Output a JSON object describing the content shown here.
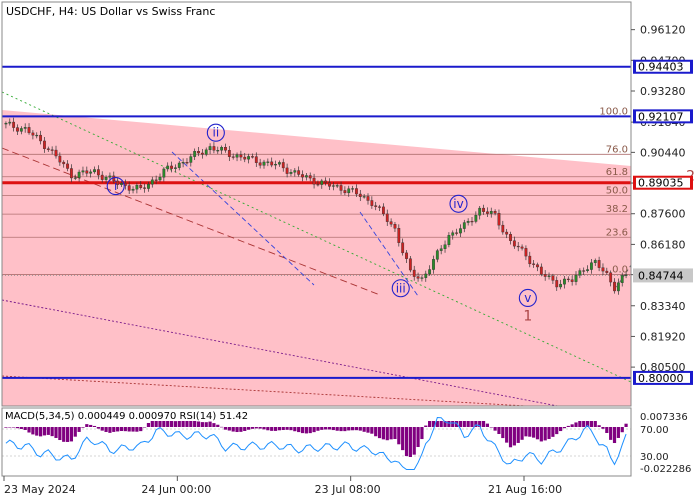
{
  "chart_data": {
    "type": "candlestick",
    "title": "USDCHF, H4:  US Dollar vs Swiss Franc",
    "y_range": [
      0.787,
      0.974
    ],
    "y_ticks": [
      "0.96120",
      "0.94700",
      "0.93280",
      "0.91840",
      "0.90440",
      "0.89020",
      "0.87600",
      "0.86180",
      "0.84780",
      "0.83340",
      "0.81920",
      "0.80500"
    ],
    "y_tick_values": [
      0.9612,
      0.947,
      0.9328,
      0.9184,
      0.9044,
      0.8902,
      0.876,
      0.8618,
      0.8478,
      0.8334,
      0.8192,
      0.805
    ],
    "x_ticks": [
      "23 May 2024",
      "24 Jun 00:00",
      "23 Jul 08:00",
      "21 Aug 16:00"
    ],
    "x_tick_bars": [
      0,
      45,
      90,
      135
    ],
    "total_bars": 162,
    "levels": [
      {
        "value": "0.94403",
        "price": 0.94403,
        "color": "#1a1acc"
      },
      {
        "value": "0.92107",
        "price": 0.92107,
        "color": "#1a1acc"
      },
      {
        "value": "0.89035",
        "price": 0.89035,
        "color": "#dd1111"
      },
      {
        "value": "0.80000",
        "price": 0.8,
        "color": "#1a1acc"
      }
    ],
    "current_price": {
      "value": "0.84744",
      "price": 0.84744
    },
    "fibonacci": [
      {
        "label": "100.0",
        "price": 0.92107
      },
      {
        "label": "76.0",
        "price": 0.9035
      },
      {
        "label": "61.8",
        "price": 0.8931
      },
      {
        "label": "50.0",
        "price": 0.8845
      },
      {
        "label": "38.2",
        "price": 0.8758
      },
      {
        "label": "23.6",
        "price": 0.8651
      },
      {
        "label": "0.0",
        "price": 0.8479
      }
    ],
    "price_path": [
      [
        0,
        0.9175
      ],
      [
        6,
        0.9152
      ],
      [
        12,
        0.9065
      ],
      [
        18,
        0.894
      ],
      [
        24,
        0.8955
      ],
      [
        30,
        0.89
      ],
      [
        36,
        0.887
      ],
      [
        42,
        0.8955
      ],
      [
        48,
        0.901
      ],
      [
        54,
        0.9068
      ],
      [
        60,
        0.9032
      ],
      [
        66,
        0.9005
      ],
      [
        72,
        0.8982
      ],
      [
        78,
        0.8932
      ],
      [
        84,
        0.8895
      ],
      [
        90,
        0.887
      ],
      [
        96,
        0.8815
      ],
      [
        102,
        0.869
      ],
      [
        106,
        0.8485
      ],
      [
        109,
        0.846
      ],
      [
        112,
        0.854
      ],
      [
        116,
        0.866
      ],
      [
        120,
        0.87
      ],
      [
        124,
        0.878
      ],
      [
        128,
        0.875
      ],
      [
        132,
        0.863
      ],
      [
        136,
        0.857
      ],
      [
        140,
        0.848
      ],
      [
        144,
        0.844
      ],
      [
        148,
        0.845
      ],
      [
        151,
        0.851
      ],
      [
        154,
        0.853
      ],
      [
        157,
        0.848
      ],
      [
        159,
        0.842
      ],
      [
        162,
        0.8474
      ]
    ],
    "wave_labels": [
      {
        "label": "i",
        "bar": 29,
        "price": 0.8888,
        "circled": true
      },
      {
        "label": "ii",
        "bar": 55,
        "price": 0.9135,
        "circled": true
      },
      {
        "label": "iii",
        "bar": 103,
        "price": 0.8415,
        "circled": true
      },
      {
        "label": "iv",
        "bar": 118,
        "price": 0.8806,
        "circled": true
      },
      {
        "label": "v",
        "bar": 136,
        "price": 0.837,
        "circled": true
      },
      {
        "label": "1",
        "bar": 136,
        "price": 0.8289,
        "circled": false
      },
      {
        "label": "2",
        "bar": 151,
        "price": 0.8938,
        "circled": false
      }
    ],
    "indicator": {
      "label": "MACD(5,34,5) 0.000449 0.000970 RSI(14) 51.42",
      "ticks": [
        "0.007336",
        "70.00",
        "30.00",
        "-0.022286"
      ]
    }
  }
}
